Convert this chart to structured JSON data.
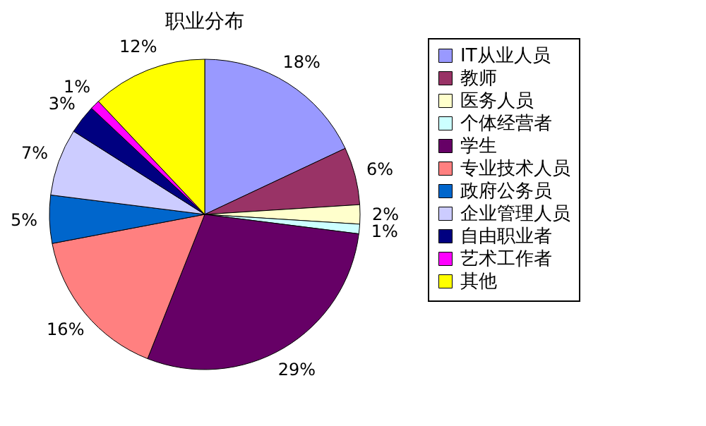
{
  "chart_data": {
    "type": "pie",
    "title": "职业分布",
    "categories": [
      "IT从业人员",
      "教师",
      "医务人员",
      "个体经营者",
      "学生",
      "专业技术人员",
      "政府公务员",
      "企业管理人员",
      "自由职业者",
      "艺术工作者",
      "其他"
    ],
    "values": [
      18,
      6,
      2,
      1,
      29,
      16,
      5,
      7,
      3,
      1,
      12
    ],
    "value_labels": [
      "18%",
      "6%",
      "2%",
      "1%",
      "29%",
      "16%",
      "5%",
      "7%",
      "3%",
      "1%",
      "12%"
    ],
    "colors": [
      "#9999ff",
      "#993366",
      "#ffffcc",
      "#ccffff",
      "#660066",
      "#ff8080",
      "#0066cc",
      "#ccccff",
      "#000080",
      "#ff00ff",
      "#ffff00"
    ],
    "legend": "right"
  }
}
